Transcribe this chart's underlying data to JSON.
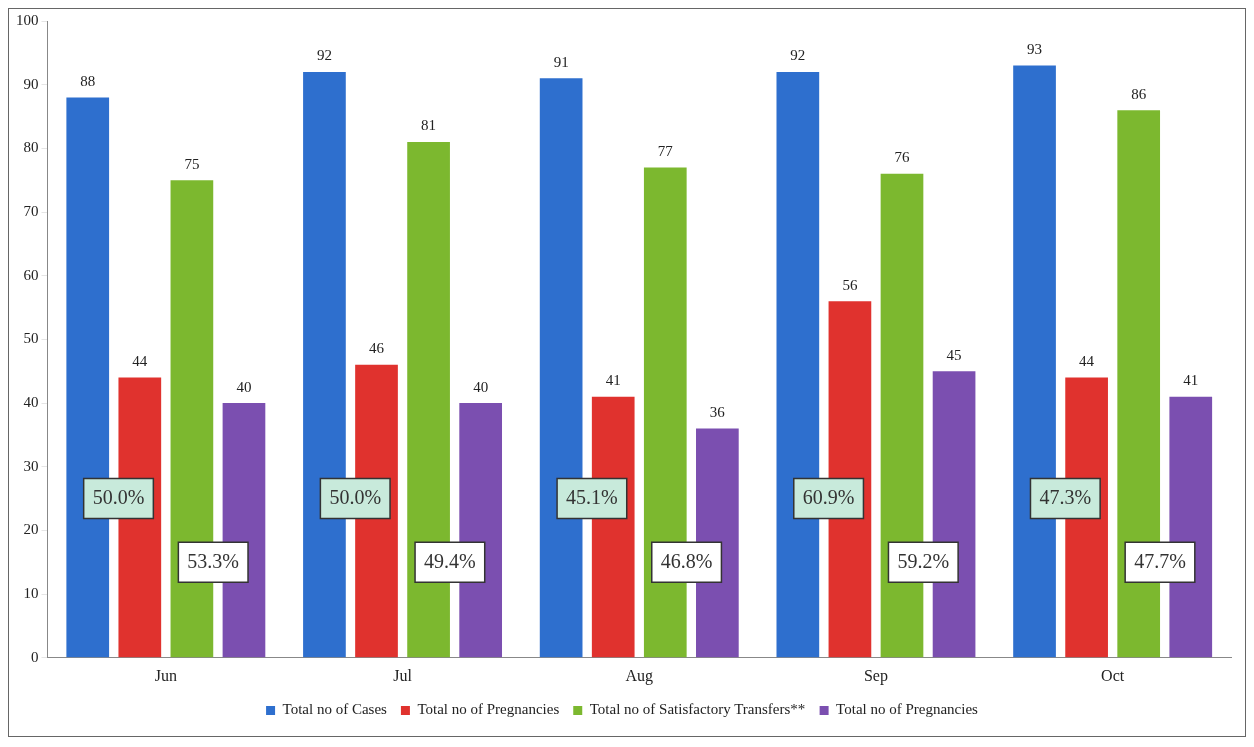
{
  "chart_data": {
    "type": "bar",
    "categories": [
      "Jun",
      "Jul",
      "Aug",
      "Sep",
      "Oct"
    ],
    "series": [
      {
        "name": "Total no of Cases",
        "color": "#2e6fce",
        "values": [
          88,
          92,
          91,
          92,
          93
        ]
      },
      {
        "name": "Total no of Pregnancies",
        "color": "#e0322e",
        "values": [
          44,
          46,
          41,
          56,
          44
        ]
      },
      {
        "name": "Total no of Satisfactory Transfers**",
        "color": "#7cb82f",
        "values": [
          75,
          81,
          77,
          76,
          86
        ]
      },
      {
        "name": "Total no of Pregnancies",
        "color": "#7b4fb0",
        "values": [
          40,
          40,
          36,
          45,
          41
        ]
      }
    ],
    "ylim": [
      0,
      100
    ],
    "yticks": [
      0,
      10,
      20,
      30,
      40,
      50,
      60,
      70,
      80,
      90,
      100
    ],
    "grid": false,
    "legend": "bottom",
    "data_labels": true,
    "annotations": [
      {
        "text": "50.0%",
        "x": "Jun",
        "y": 25
      },
      {
        "text": "53.3%",
        "x": "Jun",
        "y": 15
      },
      {
        "text": "50.0%",
        "x": "Jul",
        "y": 25
      },
      {
        "text": "49.4%",
        "x": "Jul",
        "y": 15
      },
      {
        "text": "45.1%",
        "x": "Aug",
        "y": 25
      },
      {
        "text": "46.8%",
        "x": "Aug",
        "y": 15
      },
      {
        "text": "60.9%",
        "x": "Sep",
        "y": 25
      },
      {
        "text": "59.2%",
        "x": "Sep",
        "y": 15
      },
      {
        "text": "47.3%",
        "x": "Oct",
        "y": 25
      },
      {
        "text": "47.7%",
        "x": "Oct",
        "y": 15
      }
    ]
  }
}
